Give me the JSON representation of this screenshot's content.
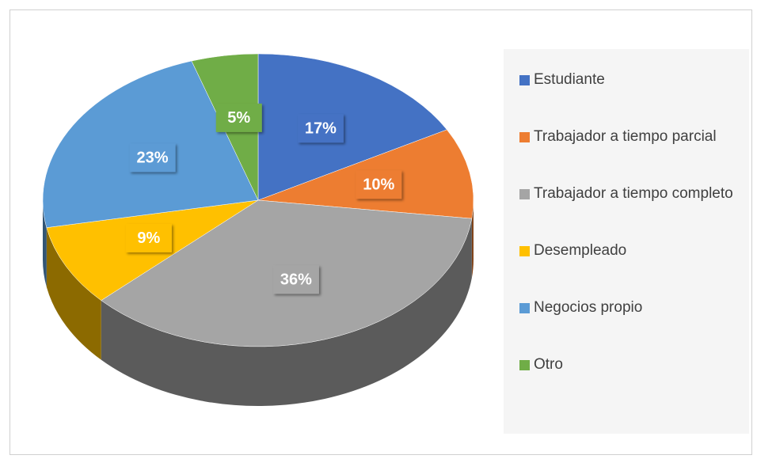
{
  "chart_data": {
    "type": "pie",
    "categories": [
      "Estudiante",
      "Trabajador a tiempo parcial",
      "Trabajador a tiempo completo",
      "Desempleado",
      "Negocios propio",
      "Otro"
    ],
    "values": [
      17,
      10,
      36,
      9,
      23,
      5
    ],
    "value_labels": [
      "17%",
      "10%",
      "36%",
      "9%",
      "23%",
      "5%"
    ],
    "colors": [
      "#4472c4",
      "#ed7d31",
      "#a5a5a5",
      "#ffc000",
      "#5b9bd5",
      "#70ad47"
    ],
    "legend": "right"
  }
}
